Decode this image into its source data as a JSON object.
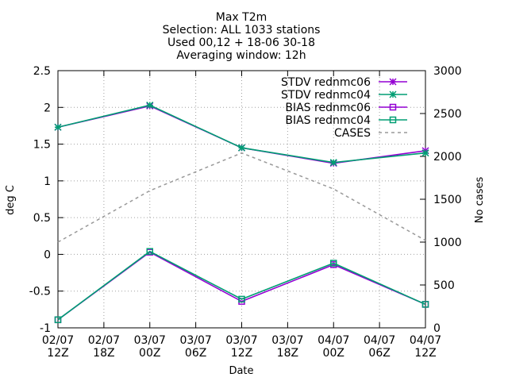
{
  "chart_data": {
    "type": "line",
    "title_lines": [
      "Max T2m",
      "Selection: ALL    1033 stations",
      "Used 00,12 + 18-06 30-18",
      "Averaging window: 12h"
    ],
    "xlabel": "Date",
    "ylabel": "deg C",
    "y2label": "No cases",
    "x_ticks": [
      [
        "02/07",
        "12Z"
      ],
      [
        "02/07",
        "18Z"
      ],
      [
        "03/07",
        "00Z"
      ],
      [
        "03/07",
        "06Z"
      ],
      [
        "03/07",
        "12Z"
      ],
      [
        "03/07",
        "18Z"
      ],
      [
        "04/07",
        "00Z"
      ],
      [
        "04/07",
        "06Z"
      ],
      [
        "04/07",
        "12Z"
      ]
    ],
    "ylim": [
      -1,
      2.5
    ],
    "y_ticks": [
      "-1",
      "-0.5",
      "0",
      "0.5",
      "1",
      "1.5",
      "2",
      "2.5"
    ],
    "y2lim": [
      0,
      3000
    ],
    "y2_ticks": [
      "0",
      "500",
      "1000",
      "1500",
      "2000",
      "2500",
      "3000"
    ],
    "grid": true,
    "legend_position": "top-right",
    "series": [
      {
        "name": "STDV rednmc06",
        "axis": "y",
        "color": "#9400d3",
        "marker": "star",
        "dash": false,
        "x": [
          0,
          2,
          4,
          6,
          8
        ],
        "values": [
          1.73,
          2.02,
          1.45,
          1.24,
          1.41
        ]
      },
      {
        "name": "STDV rednmc04",
        "axis": "y",
        "color": "#009e73",
        "marker": "star",
        "dash": false,
        "x": [
          0,
          2,
          4,
          6,
          8
        ],
        "values": [
          1.73,
          2.03,
          1.45,
          1.25,
          1.38
        ]
      },
      {
        "name": "BIAS rednmc06",
        "axis": "y",
        "color": "#9400d3",
        "marker": "square",
        "dash": false,
        "x": [
          0,
          2,
          4,
          6,
          8
        ],
        "values": [
          -0.89,
          0.03,
          -0.64,
          -0.14,
          -0.68
        ]
      },
      {
        "name": "BIAS rednmc04",
        "axis": "y",
        "color": "#009e73",
        "marker": "square",
        "dash": false,
        "x": [
          0,
          2,
          4,
          6,
          8
        ],
        "values": [
          -0.89,
          0.04,
          -0.61,
          -0.12,
          -0.68
        ]
      },
      {
        "name": "CASES",
        "axis": "y2",
        "color": "#999999",
        "marker": "none",
        "dash": true,
        "x": [
          0,
          2,
          4,
          6,
          8
        ],
        "values": [
          1000,
          1600,
          2040,
          1620,
          1020
        ]
      }
    ]
  }
}
